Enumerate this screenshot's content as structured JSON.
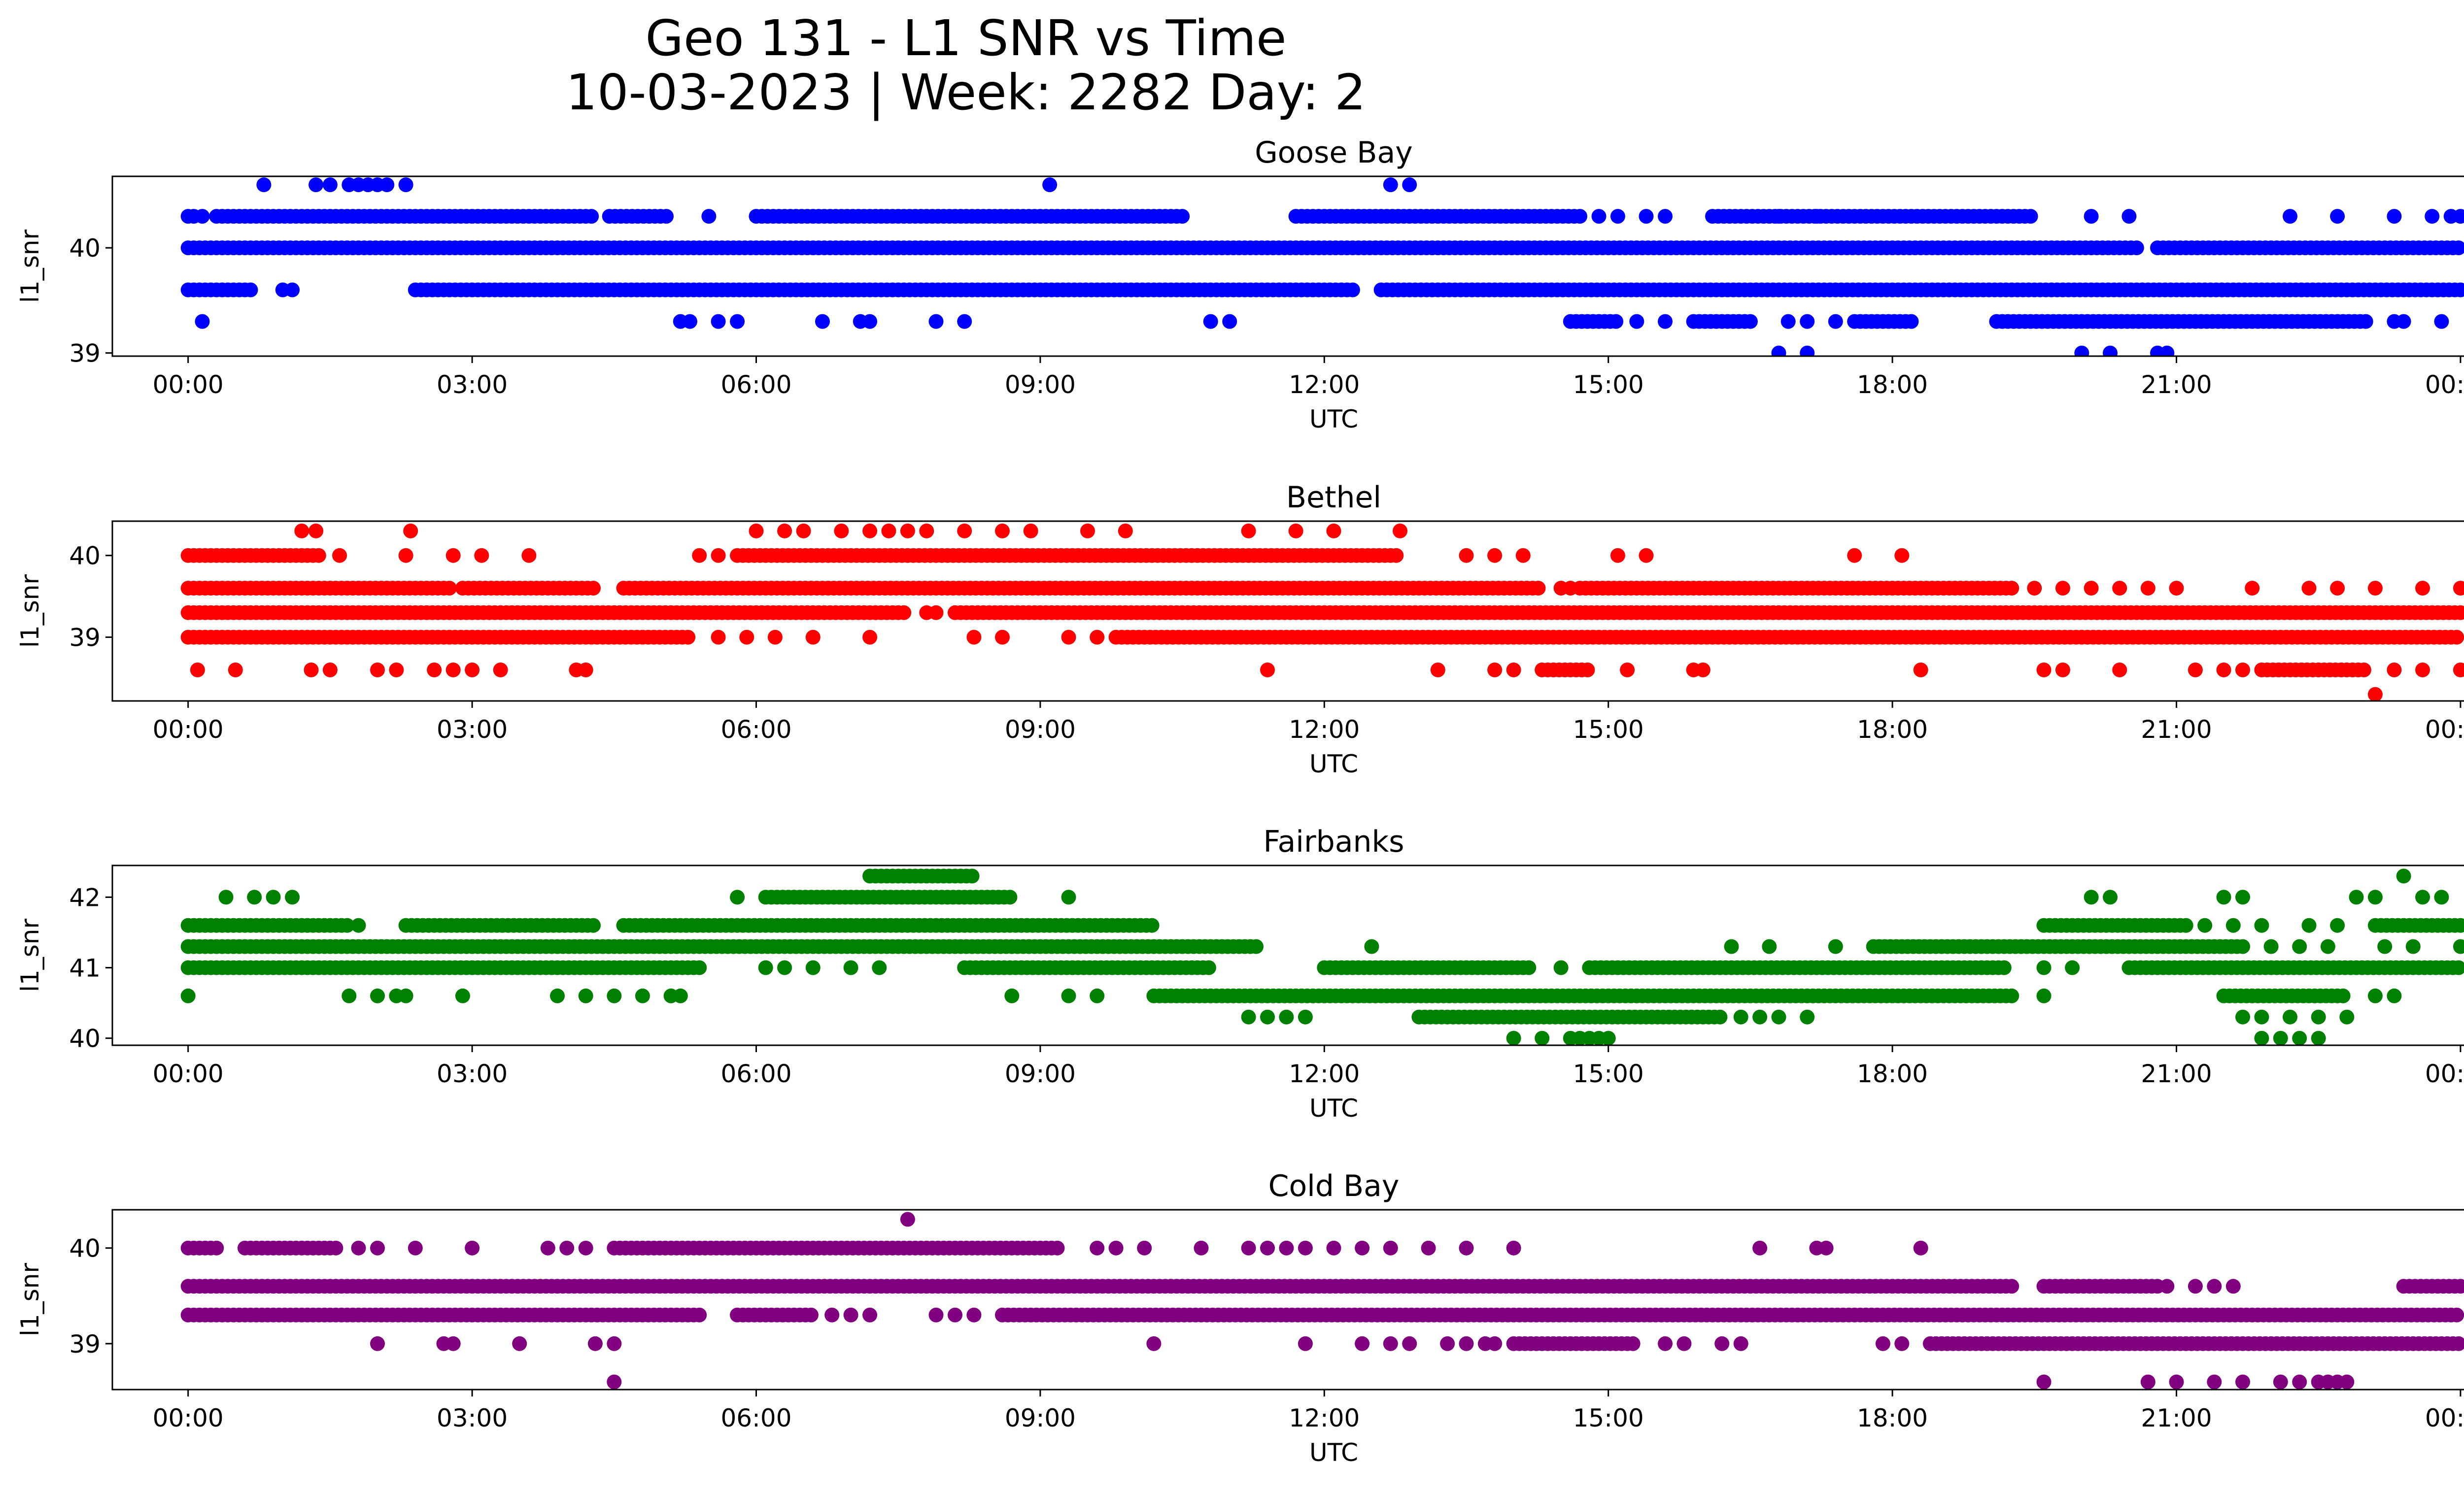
{
  "figure": {
    "title_line1": "Geo 131 - L1 SNR vs Time",
    "title_line2": "10-03-2023 | Week: 2282 Day: 2"
  },
  "chart_data": [
    {
      "type": "scatter",
      "title": "Goose Bay",
      "xlabel": "UTC",
      "ylabel": "l1_snr",
      "color": "#0000ff",
      "xlim": [
        -0.8,
        25.0
      ],
      "ylim": [
        38.97,
        40.68
      ],
      "xticks": [
        "00:00",
        "03:00",
        "06:00",
        "09:00",
        "12:00",
        "15:00",
        "18:00",
        "21:00",
        "00:00"
      ],
      "yticks": [
        39,
        40
      ],
      "levels": [
        {
          "y": 40.0,
          "segments": [
            [
              0.0,
              20.6
            ],
            [
              20.8,
              24.0
            ]
          ]
        },
        {
          "y": 40.3,
          "segments": [
            [
              0.0,
              0.1
            ],
            [
              0.3,
              4.3
            ],
            [
              4.45,
              5.1
            ],
            [
              6.0,
              10.5
            ],
            [
              11.7,
              14.7
            ],
            [
              16.1,
              19.5
            ]
          ],
          "points": [
            0.15,
            5.5,
            14.9,
            15.1,
            15.4,
            15.6,
            16.8,
            17.2,
            20.1,
            20.5,
            22.2,
            22.7,
            23.3,
            23.7,
            23.9,
            24.0
          ]
        },
        {
          "y": 39.6,
          "segments": [
            [
              0.0,
              0.7
            ],
            [
              2.4,
              12.3
            ],
            [
              12.6,
              24.0
            ]
          ],
          "points": [
            1.0,
            1.1
          ]
        },
        {
          "y": 39.3,
          "segments": [
            [
              14.6,
              15.1
            ],
            [
              15.9,
              16.5
            ],
            [
              17.6,
              18.2
            ],
            [
              19.1,
              23.0
            ]
          ],
          "points": [
            0.15,
            5.2,
            5.3,
            5.6,
            5.8,
            6.7,
            7.1,
            7.2,
            7.9,
            8.2,
            10.8,
            11.0,
            15.3,
            15.6,
            16.9,
            17.1,
            17.4,
            23.3,
            23.4,
            23.8
          ]
        },
        {
          "y": 40.6,
          "points": [
            0.8,
            1.35,
            1.5,
            1.7,
            1.8,
            1.9,
            2.0,
            2.1,
            2.3,
            9.1,
            12.7,
            12.9
          ]
        },
        {
          "y": 39.0,
          "points": [
            16.8,
            17.1,
            20.0,
            20.3,
            20.8,
            20.9
          ]
        }
      ]
    },
    {
      "type": "scatter",
      "title": "Bethel",
      "xlabel": "UTC",
      "ylabel": "l1_snr",
      "color": "#ff0000",
      "xlim": [
        -0.8,
        25.0
      ],
      "ylim": [
        38.22,
        40.42
      ],
      "xticks": [
        "00:00",
        "03:00",
        "06:00",
        "09:00",
        "12:00",
        "15:00",
        "18:00",
        "21:00",
        "00:00"
      ],
      "yticks": [
        39,
        40
      ],
      "levels": [
        {
          "y": 39.3,
          "segments": [
            [
              0.0,
              7.6
            ],
            [
              8.1,
              24.0
            ]
          ],
          "points": [
            7.8,
            7.9
          ]
        },
        {
          "y": 39.6,
          "segments": [
            [
              0.0,
              2.8
            ],
            [
              2.9,
              4.3
            ],
            [
              4.6,
              14.3
            ],
            [
              14.7,
              19.3
            ]
          ],
          "points": [
            14.5,
            14.6,
            19.5,
            19.8,
            20.1,
            20.4,
            20.7,
            21.0,
            21.8,
            22.4,
            22.7,
            23.1,
            23.6,
            24.0
          ]
        },
        {
          "y": 39.0,
          "segments": [
            [
              0.0,
              5.3
            ],
            [
              9.8,
              24.0
            ]
          ],
          "points": [
            5.6,
            5.9,
            6.2,
            6.6,
            7.2,
            8.3,
            8.6,
            9.3,
            9.6
          ]
        },
        {
          "y": 40.0,
          "segments": [
            [
              0.0,
              1.4
            ],
            [
              5.8,
              12.8
            ]
          ],
          "points": [
            1.6,
            2.3,
            2.8,
            3.1,
            3.6,
            5.4,
            5.6,
            13.5,
            13.8,
            14.1,
            15.1,
            15.4,
            17.6,
            18.1
          ]
        },
        {
          "y": 40.3,
          "points": [
            1.2,
            1.35,
            2.35,
            6.0,
            6.3,
            6.5,
            6.9,
            7.2,
            7.4,
            7.6,
            7.8,
            8.2,
            8.6,
            8.9,
            9.5,
            9.9,
            11.2,
            11.7,
            12.1,
            12.8
          ]
        },
        {
          "y": 38.6,
          "segments": [
            [
              14.3,
              14.8
            ],
            [
              21.9,
              23.0
            ]
          ],
          "points": [
            0.1,
            0.5,
            1.3,
            1.5,
            2.0,
            2.2,
            2.6,
            2.8,
            3.0,
            3.3,
            4.1,
            4.2,
            11.4,
            13.2,
            13.8,
            14.0,
            15.2,
            15.9,
            16.0,
            18.3,
            19.6,
            19.8,
            20.4,
            21.2,
            21.5,
            21.7,
            23.3,
            23.6,
            24.0
          ]
        },
        {
          "y": 38.3,
          "points": [
            23.1
          ]
        }
      ]
    },
    {
      "type": "scatter",
      "title": "Fairbanks",
      "xlabel": "UTC",
      "ylabel": "l1_snr",
      "color": "#008000",
      "xlim": [
        -0.8,
        25.0
      ],
      "ylim": [
        39.9,
        42.45
      ],
      "xticks": [
        "00:00",
        "03:00",
        "06:00",
        "09:00",
        "12:00",
        "15:00",
        "18:00",
        "21:00",
        "00:00"
      ],
      "yticks": [
        40,
        41,
        42
      ],
      "levels": [
        {
          "y": 41.0,
          "segments": [
            [
              0.0,
              5.4
            ],
            [
              8.2,
              10.8
            ],
            [
              12.0,
              14.2
            ],
            [
              14.8,
              19.2
            ],
            [
              20.5,
              24.0
            ]
          ],
          "points": [
            6.1,
            6.3,
            6.6,
            7.0,
            7.3,
            14.5,
            19.6,
            19.9
          ]
        },
        {
          "y": 41.3,
          "segments": [
            [
              0.0,
              11.3
            ],
            [
              17.8,
              21.7
            ]
          ],
          "points": [
            12.5,
            16.3,
            16.7,
            17.4,
            22.0,
            22.3,
            22.6,
            23.2,
            23.5,
            24.0
          ]
        },
        {
          "y": 41.6,
          "segments": [
            [
              0.0,
              1.7
            ],
            [
              2.3,
              4.3
            ],
            [
              4.6,
              10.2
            ],
            [
              19.6,
              21.1
            ],
            [
              23.1,
              24.0
            ]
          ],
          "points": [
            1.8,
            21.3,
            21.6,
            21.9,
            22.4,
            22.7
          ]
        },
        {
          "y": 42.0,
          "segments": [
            [
              6.1,
              8.7
            ]
          ],
          "points": [
            0.4,
            0.7,
            0.9,
            1.1,
            5.8,
            9.3,
            20.1,
            20.3,
            21.5,
            21.7,
            22.9,
            23.1,
            23.6,
            23.8
          ]
        },
        {
          "y": 42.3,
          "segments": [
            [
              7.2,
              8.3
            ]
          ],
          "points": [
            23.4
          ]
        },
        {
          "y": 40.6,
          "segments": [
            [
              10.2,
              19.3
            ],
            [
              21.5,
              22.8
            ]
          ],
          "points": [
            0.0,
            1.7,
            2.0,
            2.2,
            2.3,
            2.9,
            3.9,
            4.2,
            4.5,
            4.8,
            5.1,
            5.2,
            8.7,
            9.3,
            9.6,
            19.6,
            23.1,
            23.3
          ]
        },
        {
          "y": 40.3,
          "segments": [
            [
              13.0,
              16.2
            ]
          ],
          "points": [
            11.2,
            11.4,
            11.6,
            11.8,
            16.4,
            16.6,
            16.8,
            17.1,
            21.7,
            21.9,
            22.2,
            22.5,
            22.8
          ]
        },
        {
          "y": 40.0,
          "points": [
            14.0,
            14.3,
            14.6,
            14.7,
            14.8,
            14.9,
            15.0,
            21.9,
            22.1,
            22.3,
            22.5
          ]
        }
      ]
    },
    {
      "type": "scatter",
      "title": "Cold Bay",
      "xlabel": "UTC",
      "ylabel": "l1_snr",
      "color": "#800080",
      "xlim": [
        -0.8,
        25.0
      ],
      "ylim": [
        38.52,
        40.4
      ],
      "xticks": [
        "00:00",
        "03:00",
        "06:00",
        "09:00",
        "12:00",
        "15:00",
        "18:00",
        "21:00",
        "00:00"
      ],
      "yticks": [
        39,
        40
      ],
      "levels": [
        {
          "y": 39.6,
          "segments": [
            [
              0.0,
              19.3
            ],
            [
              19.6,
              20.8
            ],
            [
              23.4,
              24.0
            ]
          ],
          "points": [
            20.9,
            21.2,
            21.4,
            21.6
          ]
        },
        {
          "y": 39.3,
          "segments": [
            [
              0.0,
              5.4
            ],
            [
              5.8,
              6.6
            ],
            [
              8.6,
              24.0
            ]
          ],
          "points": [
            6.8,
            7.0,
            7.2,
            7.9,
            8.1,
            8.3
          ]
        },
        {
          "y": 39.0,
          "segments": [
            [
              14.0,
              15.3
            ],
            [
              18.4,
              24.0
            ]
          ],
          "points": [
            2.0,
            2.7,
            2.8,
            3.5,
            4.3,
            4.5,
            10.2,
            11.8,
            12.4,
            12.7,
            12.9,
            13.3,
            13.5,
            13.7,
            13.8,
            15.6,
            15.8,
            16.2,
            16.4,
            17.9,
            18.1
          ]
        },
        {
          "y": 40.0,
          "segments": [
            [
              0.0,
              0.35
            ],
            [
              0.6,
              1.6
            ],
            [
              4.5,
              9.2
            ]
          ],
          "points": [
            1.8,
            2.0,
            2.4,
            3.0,
            3.8,
            4.0,
            4.2,
            9.6,
            9.8,
            10.1,
            10.7,
            11.2,
            11.4,
            11.6,
            11.8,
            12.1,
            12.4,
            12.7,
            13.1,
            13.5,
            14.0,
            16.6,
            17.2,
            17.3,
            18.3
          ]
        },
        {
          "y": 40.3,
          "points": [
            7.6
          ]
        },
        {
          "y": 38.6,
          "points": [
            4.5,
            19.6,
            20.7,
            21.0,
            21.4,
            21.7,
            22.1,
            22.3,
            22.5,
            22.6,
            22.7,
            22.8
          ]
        }
      ]
    }
  ]
}
